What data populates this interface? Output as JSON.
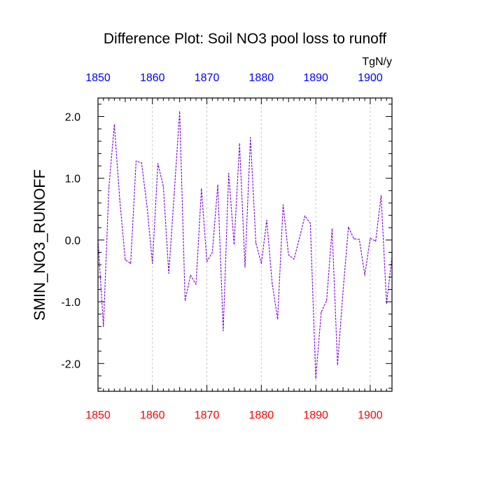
{
  "chart_data": {
    "type": "line",
    "title": "Difference Plot: Soil NO3 pool loss to runoff",
    "units": "TgN/y",
    "ylabel": "SMIN_NO3_RUNOFF",
    "xlabel": "",
    "xlim": [
      1850,
      1904
    ],
    "ylim": [
      -2.45,
      2.3
    ],
    "x_major_ticks": [
      1850,
      1860,
      1870,
      1880,
      1890,
      1900
    ],
    "x_top_tick_labels": [
      "1850",
      "1860",
      "1870",
      "1880",
      "1890",
      "1900"
    ],
    "x_bottom_tick_labels": [
      "1850",
      "1860",
      "1870",
      "1880",
      "1890",
      "1900"
    ],
    "y_major_ticks": [
      2.0,
      1.0,
      0.0,
      -1.0,
      -2.0
    ],
    "y_tick_labels": [
      "2.0",
      "1.0",
      "0.0",
      "-1.0",
      "-2.0"
    ],
    "grid": "vertical dashed at major x ticks",
    "colors": {
      "top_axis_labels": "#0000ff",
      "bottom_axis_labels": "#ff0000",
      "series_line": "#7a00d6",
      "grid": "#c8c8c8",
      "axis": "#000000"
    },
    "series": [
      {
        "name": "SMIN_NO3_RUNOFF difference",
        "style": "dashed",
        "x": [
          1850,
          1851,
          1852,
          1853,
          1854,
          1855,
          1856,
          1857,
          1858,
          1859,
          1860,
          1861,
          1862,
          1863,
          1864,
          1865,
          1866,
          1867,
          1868,
          1869,
          1870,
          1871,
          1872,
          1873,
          1874,
          1875,
          1876,
          1877,
          1878,
          1879,
          1880,
          1881,
          1882,
          1883,
          1884,
          1885,
          1886,
          1887,
          1888,
          1889,
          1890,
          1891,
          1892,
          1893,
          1894,
          1895,
          1896,
          1897,
          1898,
          1899,
          1900,
          1901,
          1902,
          1903,
          1904
        ],
        "values": [
          0.0,
          -1.4,
          0.85,
          1.87,
          0.65,
          -0.32,
          -0.38,
          1.28,
          1.25,
          0.55,
          -0.38,
          1.24,
          0.87,
          -0.54,
          0.75,
          2.08,
          -0.98,
          -0.57,
          -0.72,
          0.83,
          -0.35,
          -0.2,
          0.89,
          -1.47,
          1.08,
          -0.07,
          1.56,
          -0.44,
          1.66,
          -0.05,
          -0.38,
          0.32,
          -0.71,
          -1.28,
          0.57,
          -0.24,
          -0.31,
          0.03,
          0.39,
          0.27,
          -2.24,
          -1.17,
          -0.98,
          0.18,
          -2.02,
          -0.84,
          0.21,
          0.02,
          0.01,
          -0.57,
          0.03,
          -0.02,
          0.72,
          -1.03,
          -0.27
        ]
      }
    ]
  }
}
